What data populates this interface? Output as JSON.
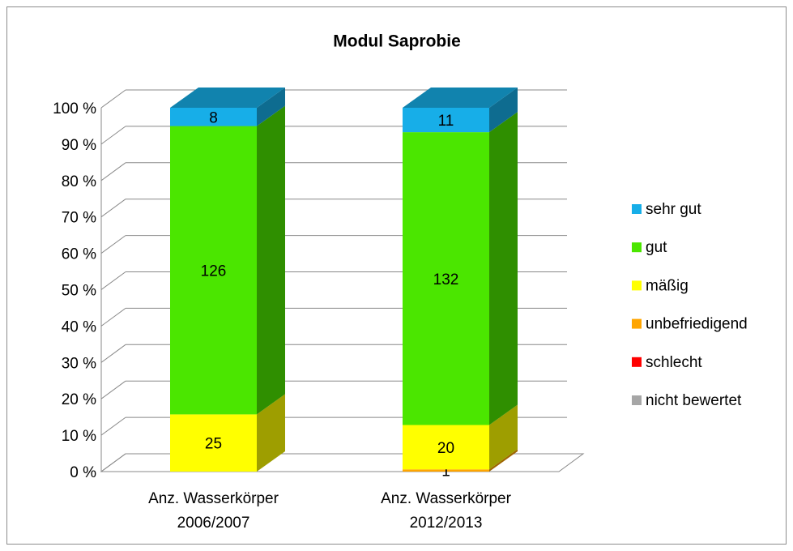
{
  "chart_data": {
    "type": "bar",
    "stacking": "percent",
    "title": "Modul Saprobie",
    "categories": [
      "Anz. Wasserkörper 2006/2007",
      "Anz. Wasserkörper 2012/2013"
    ],
    "series": [
      {
        "name": "nicht bewertet",
        "color": "#a6a6a6",
        "values": [
          null,
          null
        ]
      },
      {
        "name": "schlecht",
        "color": "#ff0000",
        "values": [
          null,
          null
        ]
      },
      {
        "name": "unbefriedigend",
        "color": "#ffa500",
        "values": [
          null,
          1
        ]
      },
      {
        "name": "mäßig",
        "color": "#ffff00",
        "values": [
          25,
          20
        ]
      },
      {
        "name": "gut",
        "color": "#4be600",
        "values": [
          126,
          132
        ]
      },
      {
        "name": "sehr gut",
        "color": "#17aee8",
        "values": [
          8,
          11
        ]
      }
    ],
    "ylim": [
      0,
      100
    ],
    "yticks": [
      {
        "value": 0,
        "label": "0 %"
      },
      {
        "value": 10,
        "label": "10 %"
      },
      {
        "value": 20,
        "label": "20 %"
      },
      {
        "value": 30,
        "label": "30 %"
      },
      {
        "value": 40,
        "label": "40 %"
      },
      {
        "value": 50,
        "label": "50 %"
      },
      {
        "value": 60,
        "label": "60 %"
      },
      {
        "value": 70,
        "label": "70 %"
      },
      {
        "value": 80,
        "label": "80 %"
      },
      {
        "value": 90,
        "label": "90 %"
      },
      {
        "value": 100,
        "label": "100 %"
      }
    ],
    "grid": true,
    "legend": "right"
  }
}
